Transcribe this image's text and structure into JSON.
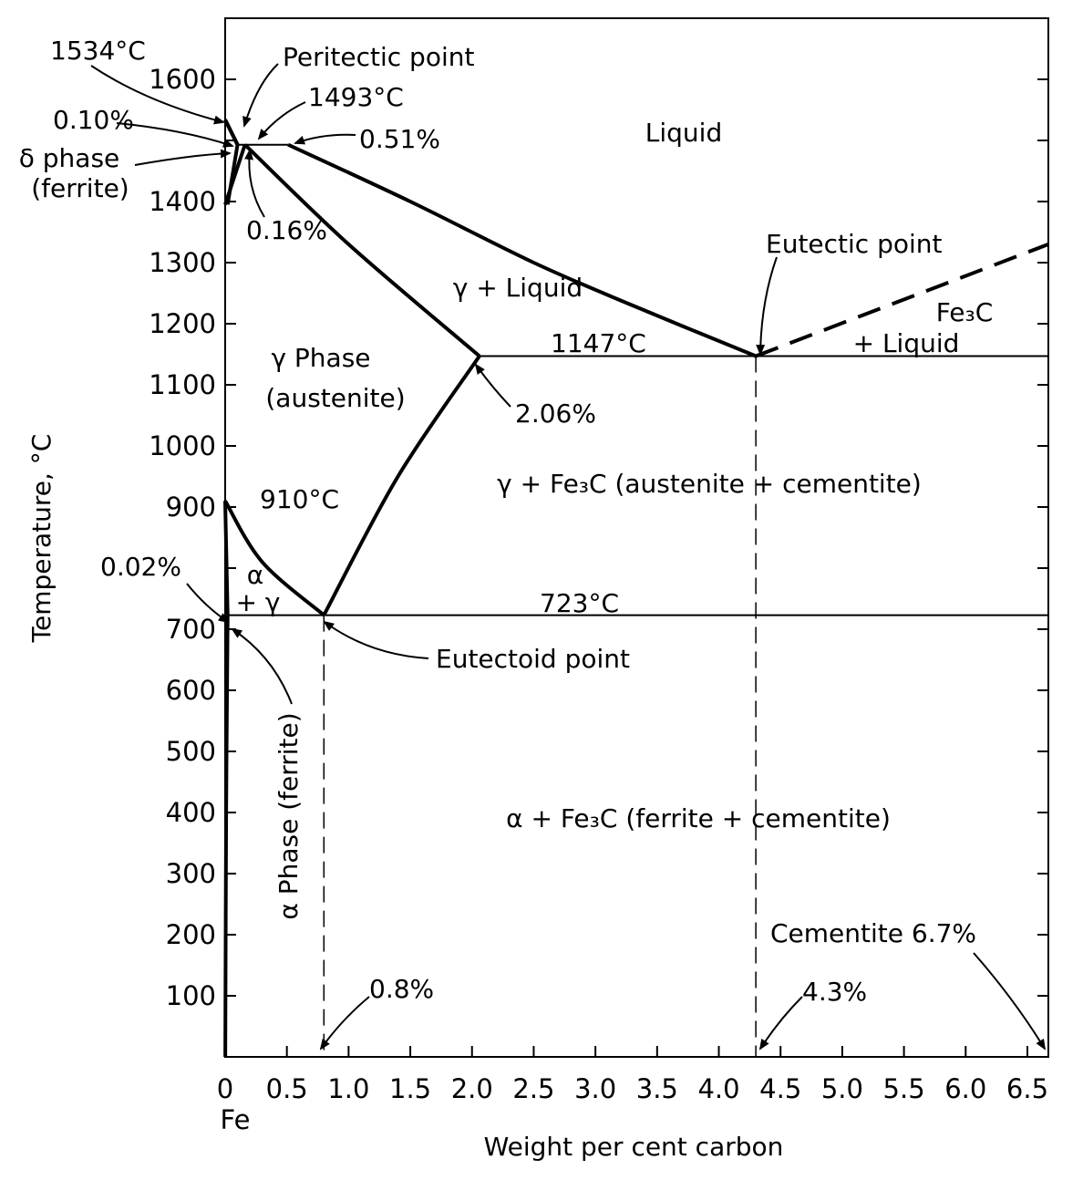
{
  "chart_data": {
    "type": "phase-diagram",
    "xlabel": "Weight per cent carbon",
    "ylabel": "Temperature, °C",
    "x_origin_label": "Fe",
    "xlim": [
      0,
      6.67
    ],
    "ylim": [
      0,
      1700
    ],
    "x_ticks": [
      "0",
      "0.5",
      "1.0",
      "1.5",
      "2.0",
      "2.5",
      "3.0",
      "3.5",
      "4.0",
      "4.5",
      "5.0",
      "5.5",
      "6.0",
      "6.5"
    ],
    "y_ticks": [
      "100",
      "200",
      "300",
      "400",
      "500",
      "600",
      "700",
      "800",
      "900",
      "1000",
      "1100",
      "1200",
      "1300",
      "1400",
      "1500",
      "1600"
    ],
    "y_tick_labels_shown": [
      "100",
      "200",
      "300",
      "400",
      "500",
      "600",
      "700",
      "",
      "900",
      "1000",
      "1100",
      "1200",
      "1300",
      "1400",
      "",
      "1600"
    ],
    "regions": {
      "liquid": "Liquid",
      "gamma_liquid": "γ + Liquid",
      "fe3c_liquid_1": "Fe₃C",
      "fe3c_liquid_2": "+ Liquid",
      "gamma_phase_1": "γ Phase",
      "gamma_phase_2": "(austenite)",
      "gamma_fe3c": "γ + Fe₃C (austenite + cementite)",
      "alpha_gamma_1": "α",
      "alpha_gamma_2": "+ γ",
      "alpha_fe3c": "α + Fe₃C (ferrite + cementite)",
      "alpha_phase": "α Phase (ferrite)",
      "delta_phase_1": "δ phase",
      "delta_phase_2": "(ferrite)"
    },
    "annotations": {
      "t1534": "1534°C",
      "peritectic": "Peritectic point",
      "t1493": "1493°C",
      "p010": "0.10%",
      "p051": "0.51%",
      "p016": "0.16%",
      "eutectic": "Eutectic point",
      "t1147": "1147°C",
      "p206": "2.06%",
      "t910": "910°C",
      "p002": "0.02%",
      "t723": "723°C",
      "eutectoid": "Eutectoid point",
      "p08": "0.8%",
      "p43": "4.3%",
      "cementite": "Cementite 6.7%"
    },
    "curves": [
      {
        "name": "liquidus-delta",
        "points": [
          [
            0,
            1534
          ],
          [
            0.1,
            1493
          ]
        ]
      },
      {
        "name": "liquidus",
        "points": [
          [
            0.51,
            1493
          ],
          [
            1.5,
            1400
          ],
          [
            2.5,
            1300
          ],
          [
            3.3,
            1230
          ],
          [
            4.3,
            1147
          ]
        ]
      },
      {
        "name": "liquidus-fe3c",
        "style": "dashed",
        "points": [
          [
            4.3,
            1147
          ],
          [
            6.67,
            1330
          ]
        ]
      },
      {
        "name": "delta-solidus",
        "points": [
          [
            0,
            1534
          ],
          [
            0.1,
            1493
          ]
        ]
      },
      {
        "name": "delta-gamma-upper",
        "points": [
          [
            0.1,
            1493
          ],
          [
            0.02,
            1395
          ]
        ]
      },
      {
        "name": "delta-gamma-lower",
        "points": [
          [
            0.16,
            1493
          ],
          [
            0,
            1395
          ]
        ]
      },
      {
        "name": "peritectic-line",
        "points": [
          [
            0.1,
            1493
          ],
          [
            0.51,
            1493
          ]
        ]
      },
      {
        "name": "austenite-solidus",
        "points": [
          [
            0.16,
            1493
          ],
          [
            1.0,
            1330
          ],
          [
            2.06,
            1147
          ]
        ]
      },
      {
        "name": "eutectic-line",
        "points": [
          [
            2.06,
            1147
          ],
          [
            6.67,
            1147
          ]
        ]
      },
      {
        "name": "acm",
        "points": [
          [
            2.06,
            1147
          ],
          [
            1.4,
            950
          ],
          [
            0.8,
            723
          ]
        ]
      },
      {
        "name": "a3",
        "points": [
          [
            0,
            910
          ],
          [
            0.3,
            810
          ],
          [
            0.8,
            723
          ]
        ]
      },
      {
        "name": "alpha-gamma-left",
        "points": [
          [
            0,
            910
          ],
          [
            0.02,
            723
          ]
        ]
      },
      {
        "name": "eutectoid-line",
        "points": [
          [
            0.02,
            723
          ],
          [
            6.67,
            723
          ]
        ]
      },
      {
        "name": "ferrite-solvus",
        "points": [
          [
            0.02,
            723
          ],
          [
            0.008,
            400
          ],
          [
            0.001,
            0
          ]
        ]
      },
      {
        "name": "guide-0.8",
        "style": "dashed",
        "points": [
          [
            0.8,
            723
          ],
          [
            0.8,
            0
          ]
        ]
      },
      {
        "name": "guide-4.3",
        "style": "dashed",
        "points": [
          [
            4.3,
            1147
          ],
          [
            4.3,
            0
          ]
        ]
      }
    ]
  }
}
